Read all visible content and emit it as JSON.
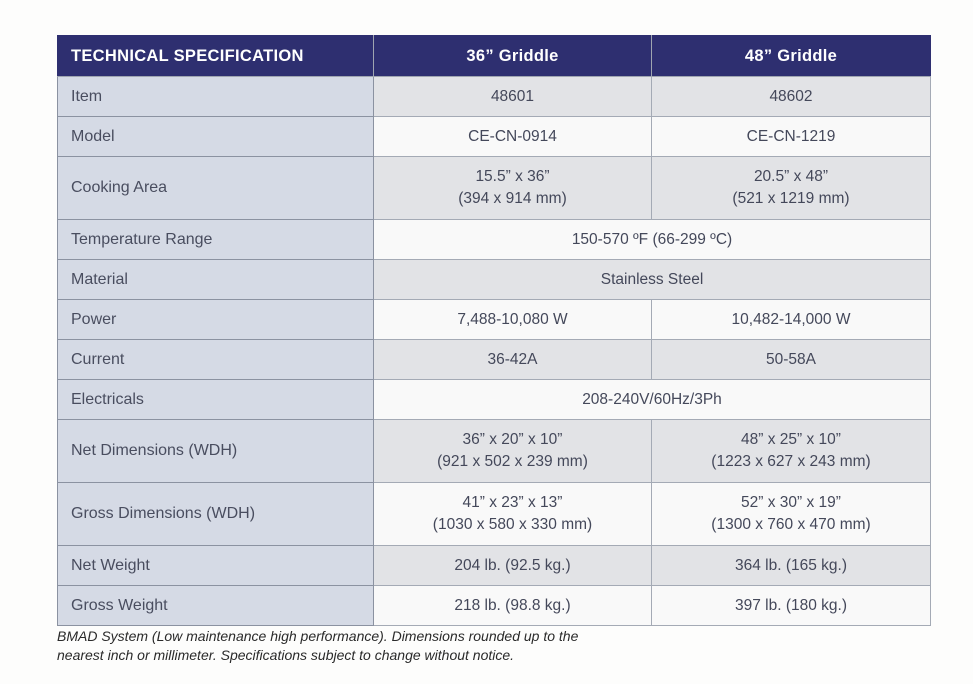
{
  "table": {
    "headers": {
      "spec": "TECHNICAL SPECIFICATION",
      "col_36": "36” Griddle",
      "col_48": "48” Griddle"
    },
    "rows": [
      {
        "label": "Item",
        "values": [
          "48601",
          "48602"
        ]
      },
      {
        "label": "Model",
        "values": [
          "CE-CN-0914",
          "CE-CN-1219"
        ]
      },
      {
        "label": "Cooking Area",
        "values": [
          "15.5” x 36”\n(394 x 914 mm)",
          "20.5” x 48”\n(521 x 1219 mm)"
        ]
      },
      {
        "label": "Temperature Range",
        "values": [
          "150-570 ºF (66-299 ºC)"
        ],
        "span": true
      },
      {
        "label": "Material",
        "values": [
          "Stainless Steel"
        ],
        "span": true
      },
      {
        "label": "Power",
        "values": [
          "7,488-10,080 W",
          "10,482-14,000 W"
        ]
      },
      {
        "label": "Current",
        "values": [
          "36-42A",
          "50-58A"
        ]
      },
      {
        "label": "Electricals",
        "values": [
          "208-240V/60Hz/3Ph"
        ],
        "span": true
      },
      {
        "label": "Net Dimensions (WDH)",
        "values": [
          "36” x 20” x 10”\n(921 x 502 x 239 mm)",
          "48” x 25” x 10”\n(1223 x 627 x 243 mm)"
        ]
      },
      {
        "label": "Gross Dimensions (WDH)",
        "values": [
          "41” x 23” x 13”\n(1030 x 580 x 330 mm)",
          "52” x 30” x 19”\n(1300 x 760 x 470 mm)"
        ]
      },
      {
        "label": "Net Weight",
        "values": [
          "204 lb. (92.5 kg.)",
          "364 lb. (165 kg.)"
        ]
      },
      {
        "label": "Gross Weight",
        "values": [
          "218 lb. (98.8 kg.)",
          "397 lb. (180 kg.)"
        ]
      }
    ]
  },
  "footnote": "BMAD System (Low maintenance high performance). Dimensions rounded up to the nearest inch or millimeter. Specifications subject to change without notice.",
  "colors": {
    "header_bg": "#2e2f70",
    "header_text": "#ffffff",
    "label_column_bg": "#d5dae5",
    "row_shaded_bg": "#e2e3e6",
    "row_plain_bg": "#f9f9f9",
    "border": "#a4aab5",
    "body_text": "#44485a"
  }
}
